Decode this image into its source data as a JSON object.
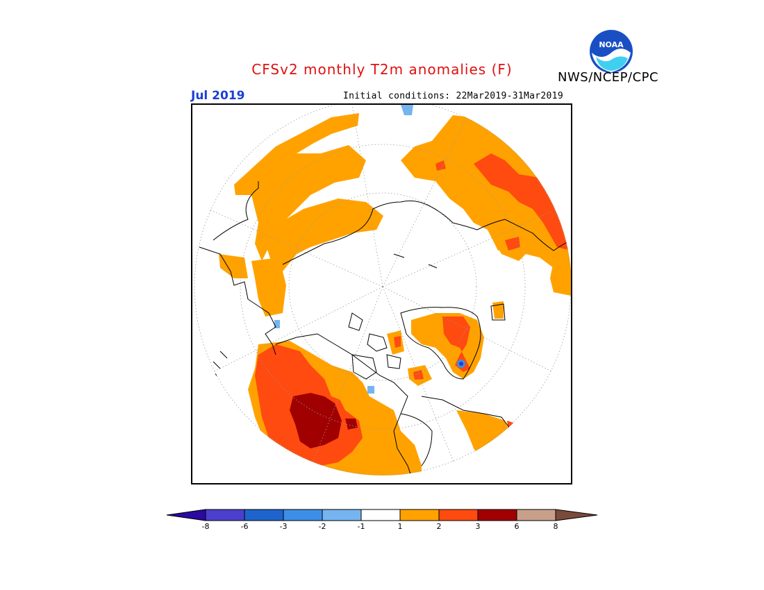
{
  "title": "CFSv2 monthly T2m anomalies (F)",
  "agency": "NWS/NCEP/CPC",
  "logo_text": "NOAA",
  "month_label": "Jul 2019",
  "initial_conditions": "Initial conditions: 22Mar2019-31Mar2019",
  "legend": {
    "ticks": [
      "-8",
      "-6",
      "-3",
      "-2",
      "-1",
      "1",
      "2",
      "3",
      "6",
      "8"
    ],
    "colors": [
      "#2a0aa0",
      "#4b3fcc",
      "#1f64cc",
      "#3d8ee6",
      "#76b4f0",
      "#ffffff",
      "#ffa200",
      "#ff4a10",
      "#a00000",
      "#c8a08a",
      "#7a4a3a"
    ]
  },
  "map": {
    "projection": "north polar stereographic",
    "colors": {
      "anom_1_2": "#ffa200",
      "anom_2_3": "#ff4a10",
      "anom_3_6": "#a00000",
      "anom_neg_1_2": "#76b4f0",
      "anom_neg_2_3": "#3d8ee6",
      "anom_neg_6": "#1f3bd6",
      "coast": "#000000",
      "grid": "#9a9a9a"
    }
  }
}
